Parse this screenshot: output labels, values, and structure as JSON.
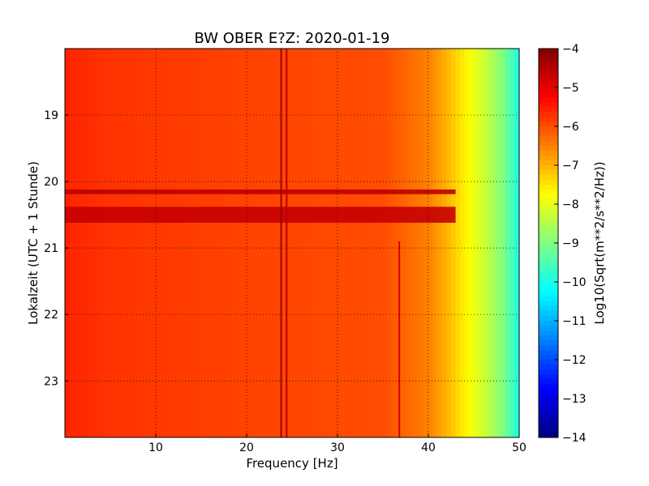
{
  "chart_data": {
    "type": "heatmap",
    "title": "BW OBER E?Z: 2020-01-19",
    "xlabel": "Frequency [Hz]",
    "ylabel": "Lokalzeit (UTC + 1 Stunde)",
    "xlim": [
      0,
      50
    ],
    "ylim": [
      18.0,
      23.85
    ],
    "x_ticks": [
      10,
      20,
      30,
      40,
      50
    ],
    "y_ticks": [
      19,
      20,
      21,
      22,
      23
    ],
    "y_inverted": true,
    "grid": true,
    "colorbar": {
      "label": "Log10(Sqrt(m**2/s**2/Hz))",
      "range": [
        -14,
        -4
      ],
      "ticks": [
        -4,
        -5,
        -6,
        -7,
        -8,
        -9,
        -10,
        -11,
        -12,
        -13,
        -14
      ],
      "colormap": "jet"
    },
    "baseline_profile": [
      {
        "freq": 0,
        "value": -5.6
      },
      {
        "freq": 5,
        "value": -5.75
      },
      {
        "freq": 20,
        "value": -5.9
      },
      {
        "freq": 35,
        "value": -6.0
      },
      {
        "freq": 40,
        "value": -6.5
      },
      {
        "freq": 42,
        "value": -7.0
      },
      {
        "freq": 44,
        "value": -7.6
      },
      {
        "freq": 46,
        "value": -8.2
      },
      {
        "freq": 48,
        "value": -8.9
      },
      {
        "freq": 50,
        "value": -10.0
      }
    ],
    "features": [
      {
        "kind": "time-band",
        "time_start": 20.12,
        "time_end": 20.19,
        "value": -4.6
      },
      {
        "kind": "time-band",
        "time_start": 20.38,
        "time_end": 20.62,
        "value": -4.7
      },
      {
        "kind": "freq-line",
        "freq": 23.8,
        "value": -4.3
      },
      {
        "kind": "freq-line",
        "freq": 24.4,
        "value": -4.6
      },
      {
        "kind": "freq-line",
        "freq": 36.8,
        "time_start": 20.9,
        "time_end": 23.85,
        "value": -4.8
      }
    ]
  }
}
